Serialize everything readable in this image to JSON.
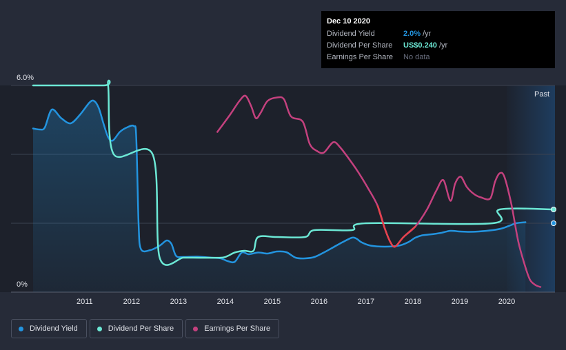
{
  "tooltip": {
    "date": "Dec 10 2020",
    "rows": [
      {
        "name": "Dividend Yield",
        "value": "2.0%",
        "unit": "/yr",
        "color": "#2394df"
      },
      {
        "name": "Dividend Per Share",
        "value": "US$0.240",
        "unit": "/yr",
        "color": "#6ce8d5"
      },
      {
        "name": "Earnings Per Share",
        "value": "No data",
        "unit": "",
        "color": "#6b7080"
      }
    ]
  },
  "legend": [
    {
      "label": "Dividend Yield",
      "color": "#2394df"
    },
    {
      "label": "Dividend Per Share",
      "color": "#6ce8d5"
    },
    {
      "label": "Earnings Per Share",
      "color": "#c4417e"
    }
  ],
  "chart_data": {
    "type": "line",
    "title": "",
    "xlabel": "",
    "ylabel": "",
    "x_ticks": [
      "2011",
      "2012",
      "2013",
      "2014",
      "2015",
      "2016",
      "2017",
      "2018",
      "2019",
      "2020"
    ],
    "y_ticks": [
      "0%",
      "6.0%"
    ],
    "xlim": [
      2010.0,
      2021.1
    ],
    "ylim": [
      0,
      6.0
    ],
    "grid": true,
    "past_label": "Past",
    "legend_position": "bottom-left",
    "series": [
      {
        "name": "Dividend Yield",
        "color": "#2394df",
        "fill": true,
        "points": [
          [
            2010.0,
            4.75
          ],
          [
            2010.15,
            4.72
          ],
          [
            2010.25,
            4.78
          ],
          [
            2010.4,
            5.3
          ],
          [
            2010.6,
            5.05
          ],
          [
            2010.8,
            4.9
          ],
          [
            2011.0,
            5.15
          ],
          [
            2011.2,
            5.5
          ],
          [
            2011.3,
            5.55
          ],
          [
            2011.4,
            5.35
          ],
          [
            2011.5,
            4.9
          ],
          [
            2011.6,
            4.5
          ],
          [
            2011.7,
            4.4
          ],
          [
            2011.85,
            4.65
          ],
          [
            2012.0,
            4.78
          ],
          [
            2012.15,
            4.82
          ],
          [
            2012.2,
            4.5
          ],
          [
            2012.25,
            2.0
          ],
          [
            2012.3,
            1.25
          ],
          [
            2012.5,
            1.22
          ],
          [
            2012.7,
            1.35
          ],
          [
            2012.85,
            1.5
          ],
          [
            2012.95,
            1.4
          ],
          [
            2013.05,
            1.05
          ],
          [
            2013.2,
            1.02
          ],
          [
            2013.5,
            1.03
          ],
          [
            2013.8,
            1.0
          ],
          [
            2014.0,
            0.98
          ],
          [
            2014.15,
            0.9
          ],
          [
            2014.3,
            0.88
          ],
          [
            2014.45,
            1.15
          ],
          [
            2014.6,
            1.1
          ],
          [
            2014.8,
            1.15
          ],
          [
            2015.0,
            1.12
          ],
          [
            2015.2,
            1.18
          ],
          [
            2015.4,
            1.16
          ],
          [
            2015.6,
            1.0
          ],
          [
            2015.8,
            0.98
          ],
          [
            2016.0,
            1.02
          ],
          [
            2016.2,
            1.15
          ],
          [
            2016.4,
            1.3
          ],
          [
            2016.6,
            1.45
          ],
          [
            2016.8,
            1.58
          ],
          [
            2016.9,
            1.55
          ],
          [
            2017.0,
            1.45
          ],
          [
            2017.2,
            1.35
          ],
          [
            2017.5,
            1.32
          ],
          [
            2017.8,
            1.35
          ],
          [
            2018.0,
            1.45
          ],
          [
            2018.15,
            1.58
          ],
          [
            2018.3,
            1.65
          ],
          [
            2018.5,
            1.68
          ],
          [
            2018.7,
            1.72
          ],
          [
            2018.9,
            1.78
          ],
          [
            2019.1,
            1.76
          ],
          [
            2019.3,
            1.75
          ],
          [
            2019.5,
            1.76
          ],
          [
            2019.8,
            1.8
          ],
          [
            2020.0,
            1.85
          ],
          [
            2020.2,
            1.95
          ],
          [
            2020.3,
            2.0
          ],
          [
            2020.5,
            2.03
          ]
        ]
      },
      {
        "name": "Dividend Per Share",
        "color": "#6ce8d5",
        "fill": false,
        "points": [
          [
            2010.0,
            6.0
          ],
          [
            2011.5,
            6.0
          ],
          [
            2011.6,
            6.0
          ],
          [
            2011.72,
            4.0
          ],
          [
            2012.55,
            4.0
          ],
          [
            2012.7,
            1.0
          ],
          [
            2013.2,
            1.0
          ],
          [
            2013.4,
            1.0
          ],
          [
            2014.0,
            1.0
          ],
          [
            2014.15,
            1.05
          ],
          [
            2014.3,
            1.15
          ],
          [
            2014.5,
            1.2
          ],
          [
            2014.7,
            1.2
          ],
          [
            2014.8,
            1.6
          ],
          [
            2015.2,
            1.6
          ],
          [
            2015.8,
            1.6
          ],
          [
            2016.0,
            1.8
          ],
          [
            2016.8,
            1.8
          ],
          [
            2017.1,
            2.0
          ],
          [
            2019.8,
            2.0
          ],
          [
            2019.95,
            2.4
          ],
          [
            2021.1,
            2.4
          ]
        ]
      },
      {
        "name": "Earnings Per Share",
        "color": "#c4417e",
        "fill": false,
        "points": [
          [
            2013.93,
            4.65
          ],
          [
            2014.2,
            5.15
          ],
          [
            2014.4,
            5.55
          ],
          [
            2014.53,
            5.7
          ],
          [
            2014.65,
            5.4
          ],
          [
            2014.75,
            5.05
          ],
          [
            2014.85,
            5.2
          ],
          [
            2015.0,
            5.55
          ],
          [
            2015.2,
            5.65
          ],
          [
            2015.35,
            5.6
          ],
          [
            2015.5,
            5.1
          ],
          [
            2015.75,
            4.95
          ],
          [
            2015.9,
            4.3
          ],
          [
            2016.05,
            4.1
          ],
          [
            2016.2,
            4.05
          ],
          [
            2016.4,
            4.35
          ],
          [
            2016.55,
            4.2
          ],
          [
            2016.8,
            3.75
          ],
          [
            2016.95,
            3.45
          ],
          [
            2017.15,
            3.0
          ],
          [
            2017.35,
            2.5
          ],
          [
            2017.5,
            1.85
          ],
          [
            2017.62,
            1.45
          ],
          [
            2017.72,
            1.32
          ],
          [
            2017.9,
            1.6
          ],
          [
            2018.15,
            1.9
          ],
          [
            2018.4,
            2.4
          ],
          [
            2018.6,
            2.95
          ],
          [
            2018.75,
            3.25
          ],
          [
            2018.9,
            2.65
          ],
          [
            2019.0,
            3.15
          ],
          [
            2019.12,
            3.35
          ],
          [
            2019.25,
            3.05
          ],
          [
            2019.4,
            2.85
          ],
          [
            2019.55,
            2.75
          ],
          [
            2019.75,
            2.72
          ],
          [
            2019.85,
            3.2
          ],
          [
            2019.95,
            3.45
          ],
          [
            2020.05,
            3.35
          ],
          [
            2020.2,
            2.55
          ],
          [
            2020.35,
            1.45
          ],
          [
            2020.5,
            0.72
          ],
          [
            2020.6,
            0.35
          ],
          [
            2020.72,
            0.2
          ],
          [
            2020.82,
            0.15
          ]
        ]
      }
    ],
    "highlight_segment": {
      "series": "Earnings Per Share",
      "color": "#e8434d",
      "x_range": [
        2017.25,
        2018.15
      ]
    },
    "end_markers": [
      {
        "series": "Dividend Yield",
        "value": 2.0
      },
      {
        "series": "Dividend Per Share",
        "value": 2.4
      }
    ]
  }
}
